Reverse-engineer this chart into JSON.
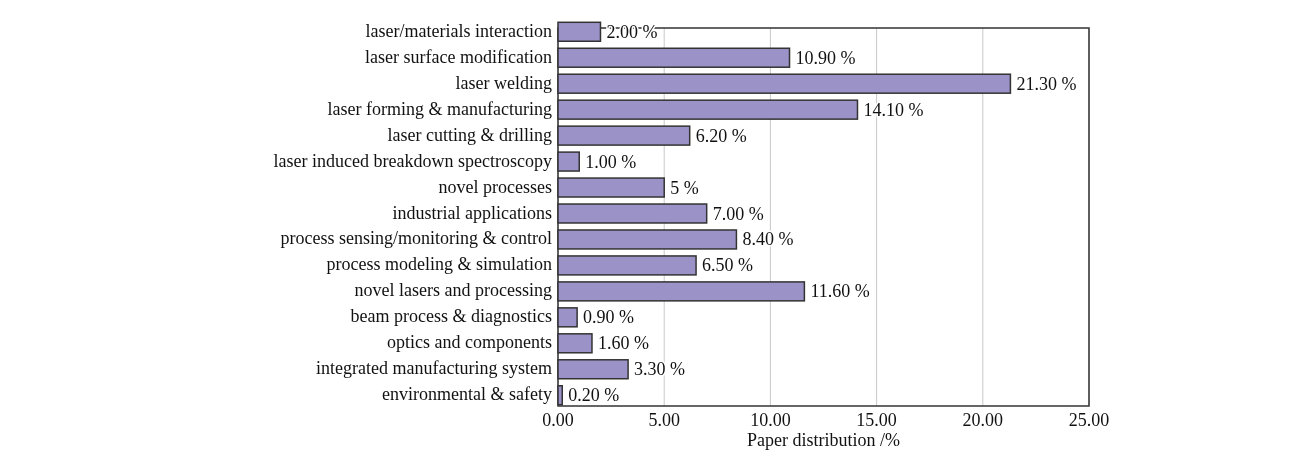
{
  "chart_data": {
    "type": "bar",
    "orientation": "horizontal",
    "xlabel": "Paper distribution /%",
    "categories": [
      "laser/materials interaction",
      "laser surface modification",
      "laser welding",
      "laser forming & manufacturing",
      "laser cutting & drilling",
      "laser induced breakdown spectroscopy",
      "novel processes",
      "industrial applications",
      "process sensing/monitoring & control",
      "process modeling & simulation",
      "novel lasers and processing",
      "beam process & diagnostics",
      "optics and components",
      "integrated manufacturing system",
      "environmental & safety"
    ],
    "values": [
      2.0,
      10.9,
      21.3,
      14.1,
      6.2,
      1.0,
      5,
      7.0,
      8.4,
      6.5,
      11.6,
      0.9,
      1.6,
      3.3,
      0.2
    ],
    "value_labels": [
      "2.00 %",
      "10.90 %",
      "21.30 %",
      "14.10 %",
      "6.20 %",
      "1.00 %",
      "5 %",
      "7.00 %",
      "8.40 %",
      "6.50 %",
      "11.60 %",
      "0.90 %",
      "1.60 %",
      "3.30 %",
      "0.20 %"
    ],
    "color": "#9b93c8",
    "xlim": [
      0,
      25
    ],
    "xticks": [
      {
        "value": 0,
        "label": "0.00"
      },
      {
        "value": 5,
        "label": "5.00"
      },
      {
        "value": 10,
        "label": "10.00"
      },
      {
        "value": 15,
        "label": "15.00"
      },
      {
        "value": 20,
        "label": "20.00"
      },
      {
        "value": 25,
        "label": "25.00"
      }
    ],
    "grid": "x"
  }
}
